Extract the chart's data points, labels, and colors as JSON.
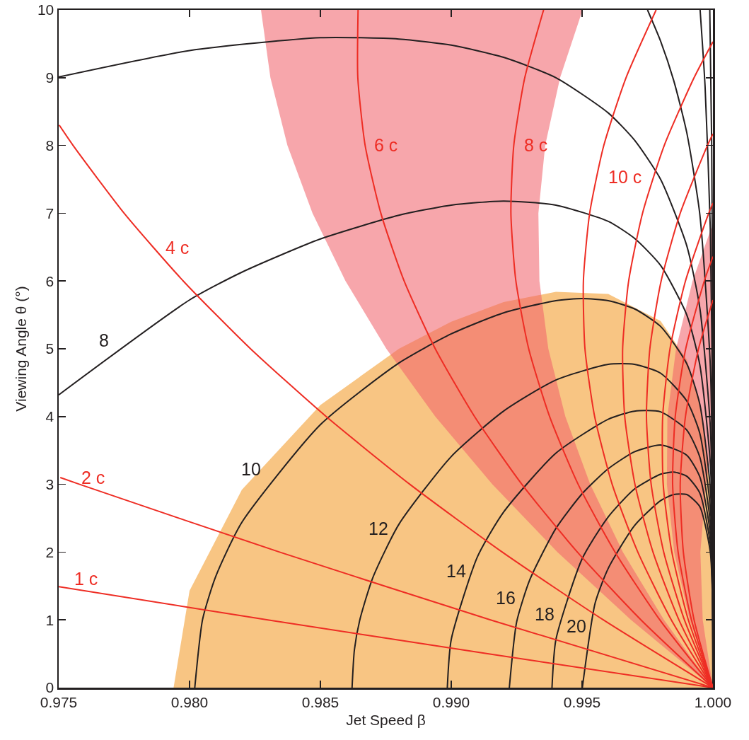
{
  "chart_data": {
    "type": "line",
    "xlabel": "Jet Speed β",
    "ylabel": "Viewing Angle θ (°)",
    "xlim": [
      0.975,
      1.0
    ],
    "ylim": [
      0,
      10
    ],
    "xticks": [
      0.975,
      {
        "value": 0.98,
        "label": "0.980"
      },
      0.985,
      {
        "value": 0.99,
        "label": "0.990"
      },
      0.995,
      {
        "value": 1.0,
        "label": "1.000"
      }
    ],
    "yticks": [
      0,
      1,
      2,
      3,
      4,
      5,
      6,
      7,
      8,
      9,
      10
    ],
    "grid": false,
    "legend": false,
    "marker": "none",
    "line_style": "solid",
    "series": [
      {
        "type": "area",
        "color": "#f8c583",
        "x": [
          0.97939,
          0.98,
          0.982,
          0.985,
          0.988,
          0.99,
          0.992,
          0.994,
          0.996,
          0.998,
          0.999,
          0.9995,
          0.9999,
          1,
          0.97939
        ],
        "values": [
          0,
          1.43,
          2.92,
          4.17,
          5.0,
          5.4,
          5.69,
          5.84,
          5.81,
          5.41,
          4.84,
          4.23,
          2.97,
          0,
          0
        ]
      },
      {
        "type": "area",
        "color": "#f7a6ab",
        "x": [
          1,
          0.99687,
          0.99406,
          0.99157,
          0.98939,
          0.98752,
          0.98596,
          0.9847,
          0.98374,
          0.98309,
          0.98273,
          0.99502,
          0.99416,
          0.99359,
          0.99333,
          0.99337,
          0.99371,
          0.99436,
          0.99531,
          0.99656,
          0.99813,
          1
        ],
        "values": [
          0,
          1,
          2,
          3,
          4,
          5,
          6,
          7,
          8,
          9,
          10,
          10,
          9,
          8,
          7,
          6,
          5,
          4,
          3,
          2,
          1,
          0
        ]
      },
      {
        "type": "area",
        "color": "#f7a6ab",
        "x": [
          1,
          0.99911,
          0.99852,
          0.99824,
          0.99826,
          0.99859,
          0.99922,
          1,
          1,
          0.99973,
          0.99952,
          0.99961,
          1
        ],
        "values": [
          0,
          1,
          2,
          3,
          4,
          5,
          6,
          6.85,
          3.58,
          3,
          2,
          1,
          0
        ]
      },
      {
        "color": "#231f20",
        "x": [
          0.99988,
          0.99995,
          0.99999,
          1
        ],
        "values": [
          10,
          8.09,
          5.41,
          0
        ]
      },
      {
        "color": "#231f20",
        "x": [
          0.99951,
          0.9997,
          0.9999,
          0.99999,
          1
        ],
        "values": [
          10,
          8.87,
          6.77,
          3.82,
          0
        ]
      },
      {
        "color": "#231f20",
        "x": [
          0.9975,
          0.998,
          0.9985,
          0.999,
          0.9995,
          0.9999,
          0.99999,
          1
        ],
        "values": [
          10,
          9.54,
          8.96,
          8.19,
          6.98,
          4.75,
          2.7,
          0
        ]
      },
      {
        "color": "#231f20",
        "x": [
          0.975,
          0.98,
          0.985,
          0.988,
          0.99,
          0.992,
          0.994,
          0.996,
          0.997,
          0.998,
          0.999,
          0.9995,
          0.9999,
          0.99999,
          1
        ],
        "values": [
          9.01,
          9.4,
          9.59,
          9.57,
          9.48,
          9.3,
          9.0,
          8.48,
          8.08,
          7.5,
          6.52,
          5.6,
          3.85,
          2.2,
          0
        ]
      },
      {
        "name": "8",
        "color": "#231f20",
        "x": [
          0.975,
          0.98,
          0.982,
          0.985,
          0.988,
          0.99,
          0.992,
          0.994,
          0.996,
          0.997,
          0.998,
          0.999,
          0.9995,
          0.9999,
          0.99999,
          1
        ],
        "values": [
          4.32,
          5.72,
          6.13,
          6.62,
          6.97,
          7.12,
          7.18,
          7.12,
          6.88,
          6.63,
          6.23,
          5.5,
          4.76,
          3.31,
          1.9,
          0
        ]
      },
      {
        "name": "10",
        "color": "#231f20",
        "x": [
          0.9802,
          0.9805,
          0.981,
          0.982,
          0.985,
          0.988,
          0.99,
          0.992,
          0.994,
          0.995,
          0.996,
          0.997,
          0.998,
          0.999,
          0.9995,
          0.9999,
          0.99999,
          1
        ],
        "values": [
          0,
          1.01,
          1.64,
          2.44,
          3.88,
          4.79,
          5.22,
          5.53,
          5.71,
          5.74,
          5.71,
          5.59,
          5.33,
          4.78,
          4.18,
          2.94,
          1.69,
          0
        ]
      },
      {
        "name": "12",
        "color": "#231f20",
        "x": [
          0.98621,
          0.9863,
          0.9865,
          0.987,
          0.988,
          0.99,
          0.992,
          0.994,
          0.996,
          0.997,
          0.998,
          0.999,
          0.9995,
          0.9999,
          0.99999,
          1
        ],
        "values": [
          0,
          0.56,
          0.99,
          1.62,
          2.41,
          3.41,
          4.08,
          4.54,
          4.77,
          4.77,
          4.64,
          4.23,
          3.75,
          2.66,
          1.54,
          0
        ]
      },
      {
        "name": "14",
        "color": "#231f20",
        "x": [
          0.98985,
          0.99,
          0.991,
          0.992,
          0.994,
          0.996,
          0.997,
          0.998,
          0.999,
          0.9995,
          0.9999,
          0.99999,
          1
        ],
        "values": [
          0,
          0.71,
          1.93,
          2.59,
          3.46,
          3.96,
          4.08,
          4.07,
          3.8,
          3.4,
          2.44,
          1.42,
          0
        ]
      },
      {
        "name": "16",
        "color": "#231f20",
        "x": [
          0.99222,
          0.9925,
          0.993,
          0.994,
          0.995,
          0.996,
          0.997,
          0.998,
          0.999,
          0.9995,
          0.9999,
          0.99999,
          1
        ],
        "values": [
          0,
          0.97,
          1.59,
          2.35,
          2.86,
          3.23,
          3.48,
          3.58,
          3.43,
          3.11,
          2.27,
          1.33,
          0
        ]
      },
      {
        "name": "18",
        "color": "#231f20",
        "x": [
          0.99385,
          0.994,
          0.995,
          0.996,
          0.997,
          0.998,
          0.9985,
          0.999,
          0.9995,
          0.9999,
          0.99999,
          1
        ],
        "values": [
          0,
          0.71,
          1.9,
          2.52,
          2.93,
          3.15,
          3.18,
          3.12,
          2.87,
          2.12,
          1.25,
          0
        ]
      },
      {
        "name": "20",
        "color": "#231f20",
        "x": [
          0.99501,
          0.9955,
          0.996,
          0.997,
          0.998,
          0.9985,
          0.999,
          0.9995,
          0.9999,
          0.99999,
          1
        ],
        "values": [
          0,
          1.25,
          1.76,
          2.39,
          2.76,
          2.85,
          2.85,
          2.67,
          2.0,
          1.19,
          0
        ]
      },
      {
        "name": "1 c",
        "color": "#ee2d24",
        "x": [
          1,
          0.99139,
          0.98299,
          0.975
        ],
        "values": [
          0,
          0.5,
          1,
          1.49
        ]
      },
      {
        "name": "2 c",
        "color": "#ee2d24",
        "x": [
          1,
          0.9915,
          0.98344,
          0.9758,
          0.97506
        ],
        "values": [
          0,
          1,
          2,
          3,
          3.1
        ]
      },
      {
        "name": "4 c",
        "color": "#ee2d24",
        "x": [
          1,
          0.99581,
          0.99195,
          0.98842,
          0.98522,
          0.98233,
          0.97976,
          0.9775,
          0.97555,
          0.97502
        ],
        "values": [
          0,
          1,
          2,
          3,
          4,
          5,
          6,
          7,
          8,
          8.3
        ]
      },
      {
        "name": "6 c",
        "color": "#ee2d24",
        "x": [
          1,
          0.99725,
          0.99482,
          0.9927,
          0.99089,
          0.98939,
          0.9882,
          0.98731,
          0.98671,
          0.98643,
          0.98644
        ],
        "values": [
          0,
          1,
          2,
          3,
          4,
          5,
          6,
          7,
          8,
          9,
          10
        ]
      },
      {
        "name": "8 c",
        "color": "#ee2d24",
        "x": [
          1,
          0.99797,
          0.99626,
          0.99485,
          0.99376,
          0.99296,
          0.99247,
          0.99228,
          0.99239,
          0.99281,
          0.99353
        ],
        "values": [
          0,
          1,
          2,
          3,
          4,
          5,
          6,
          7,
          8,
          9,
          10
        ]
      },
      {
        "name": "10 c",
        "color": "#ee2d24",
        "x": [
          1,
          0.99841,
          0.99713,
          0.99615,
          0.99548,
          0.99511,
          0.99505,
          0.99529,
          0.99583,
          0.99668,
          0.99783
        ],
        "values": [
          0,
          1,
          2,
          3,
          4,
          5,
          6,
          7,
          8,
          9,
          10
        ]
      },
      {
        "color": "#ee2d24",
        "x": [
          1,
          0.9987,
          0.99771,
          0.99702,
          0.99663,
          0.99655,
          0.99678,
          0.99731,
          0.99814,
          0.99928,
          1
        ],
        "values": [
          0,
          1,
          2,
          3,
          4,
          5,
          6,
          7,
          8,
          9,
          9.53
        ]
      },
      {
        "color": "#ee2d24",
        "x": [
          1,
          0.99891,
          0.99812,
          0.99764,
          0.99746,
          0.99759,
          0.99802,
          0.99875,
          0.99979,
          1
        ],
        "values": [
          0,
          1,
          2,
          3,
          4,
          5,
          6,
          7,
          8,
          8.17
        ]
      },
      {
        "color": "#ee2d24",
        "x": [
          1,
          0.99906,
          0.99843,
          0.9981,
          0.99808,
          0.99836,
          0.99895,
          0.99984,
          1
        ],
        "values": [
          0,
          1,
          2,
          3,
          4,
          5,
          6,
          7,
          7.15
        ]
      },
      {
        "color": "#ee2d24",
        "x": [
          1,
          0.99918,
          0.99867,
          0.99846,
          0.99856,
          0.99896,
          0.99967,
          1
        ],
        "values": [
          0,
          1,
          2,
          3,
          4,
          5,
          6,
          6.36
        ]
      },
      {
        "color": "#ee2d24",
        "x": [
          1,
          0.99928,
          0.99887,
          0.99875,
          0.99895,
          0.99945,
          1
        ],
        "values": [
          0,
          1,
          2,
          3,
          4,
          5,
          5.72
        ]
      }
    ]
  }
}
